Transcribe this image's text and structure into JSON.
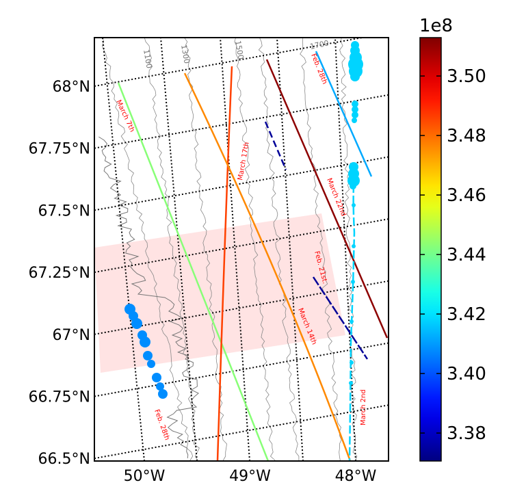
{
  "map": {
    "lat_labels": [
      "68°N",
      "67.75°N",
      "67.5°N",
      "67.25°N",
      "67°N",
      "66.75°N",
      "66.5°N"
    ],
    "lon_labels": [
      "50°W",
      "49°W",
      "48°W"
    ],
    "contour_labels": [
      "1100",
      "1300",
      "1500",
      "1700"
    ],
    "colormap": "jet",
    "colorbar": {
      "exponent": "1e8",
      "range": [
        3.3706,
        3.5129
      ],
      "ticks": [
        3.38,
        {
          "value": 3.4,
          "label": "3.40"
        },
        3.42,
        3.44,
        3.46,
        3.48,
        {
          "value": 3.5,
          "label": "3.50"
        }
      ]
    },
    "tracks": [
      {
        "label": "March 7th",
        "value": 3.443
      },
      {
        "label": "March 17th",
        "value": 3.486
      },
      {
        "label": "Feb. 28th",
        "value": 3.412
      },
      {
        "label": "March 22nd",
        "value": 3.511
      },
      {
        "label": "Feb. 21st.",
        "value": 3.374
      },
      {
        "label": "March 14th",
        "value": 3.476
      },
      {
        "label": "March 2nd",
        "value": 3.418
      },
      {
        "label": "Feb. 28th",
        "value": 3.408
      }
    ]
  }
}
